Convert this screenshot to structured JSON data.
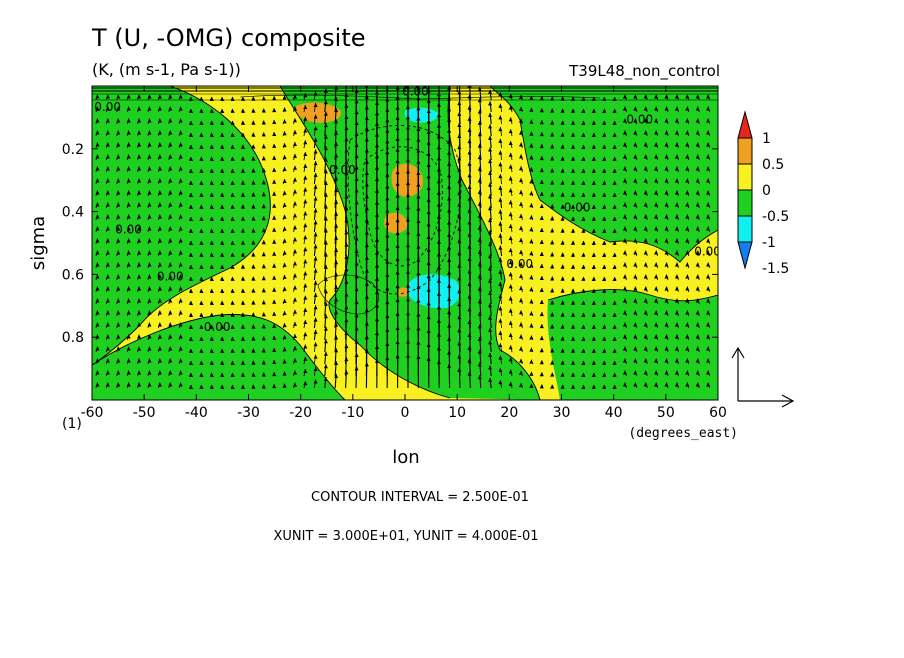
{
  "chart_data": {
    "type": "heatmap",
    "title": "T (U, -OMG) composite",
    "subtitle": "(K, (m s-1, Pa s-1))",
    "run_id": "T39L48_non_control",
    "xlabel": "lon",
    "xunit": "(degrees_east)",
    "ylabel": "sigma",
    "corner_label": "(1)",
    "xlim": [
      -60,
      60
    ],
    "ylim": [
      0.0,
      1.0
    ],
    "y_inverted": true,
    "xticks": [
      "-60",
      "-50",
      "-40",
      "-30",
      "-20",
      "-10",
      "0",
      "10",
      "20",
      "30",
      "40",
      "50",
      "60"
    ],
    "yticks": [
      "0.2",
      "0.4",
      "0.6",
      "0.8"
    ],
    "ytick_values": [
      0.2,
      0.4,
      0.6,
      0.8
    ],
    "colorbar": {
      "levels": [
        "1",
        "0.5",
        "0",
        "-0.5",
        "-1",
        "-1.5"
      ],
      "colors": [
        "#e8261a",
        "#f0a020",
        "#f8f020",
        "#20d020",
        "#10f0f0",
        "#1080f0"
      ]
    },
    "fill_colors": {
      "positive_high": "#f0a020",
      "positive": "#f8f020",
      "negative": "#20d020",
      "negative_low": "#10f0f0"
    },
    "contour_label": "0.00",
    "contour_label_positions": [
      {
        "lon": -57,
        "sigma": 0.08
      },
      {
        "lon": -53,
        "sigma": 0.47
      },
      {
        "lon": -45,
        "sigma": 0.62
      },
      {
        "lon": -36,
        "sigma": 0.78
      },
      {
        "lon": -12,
        "sigma": 0.28
      },
      {
        "lon": 2,
        "sigma": 0.03
      },
      {
        "lon": 22,
        "sigma": 0.58
      },
      {
        "lon": 33,
        "sigma": 0.4
      },
      {
        "lon": 45,
        "sigma": 0.12
      },
      {
        "lon": 58,
        "sigma": 0.54
      }
    ],
    "contour_interval_text": "CONTOUR INTERVAL = 2.500E-01",
    "vector_units_text": "XUNIT = 3.000E+01, YUNIT = 4.000E-01",
    "vectors": {
      "xunit": 30.0,
      "yunit": 0.4
    }
  }
}
